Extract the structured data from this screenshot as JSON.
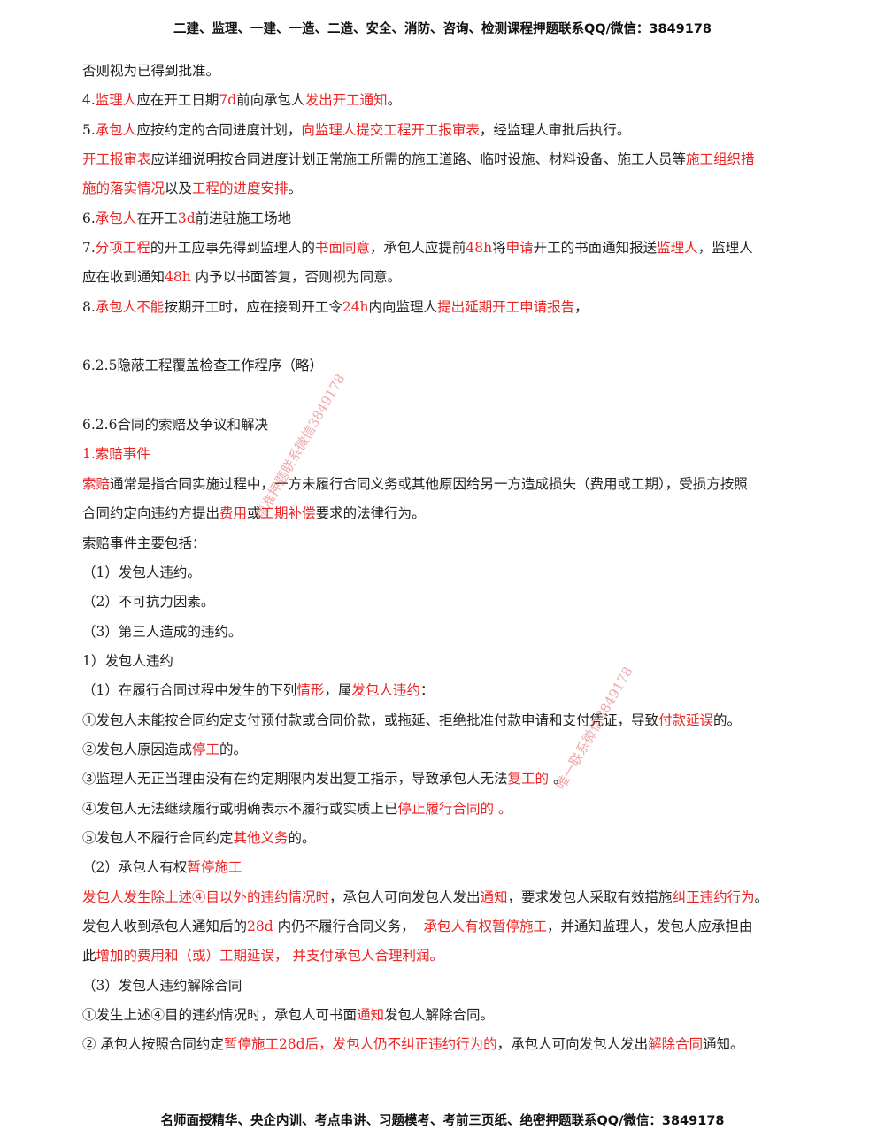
{
  "header": "二建、监理、一建、一造、二造、安全、消防、咨询、检测课程押题联系QQ/微信：3849178",
  "footer": "名师面授精华、央企内训、考点串讲、习题模考、考前三页纸、绝密押题联系QQ/微信：3849178",
  "watermarks": [
    "精准押题联系微信3849178",
    "唯一联系微信3849178"
  ],
  "colors": {
    "highlight": "#ee2222",
    "text": "#222222"
  },
  "lines": [
    [
      {
        "t": "否则视为已得到批准。"
      }
    ],
    [
      {
        "t": "4."
      },
      {
        "t": "监理人",
        "r": 1
      },
      {
        "t": "应在开工日期"
      },
      {
        "t": "7d",
        "r": 1
      },
      {
        "t": "前向承包人"
      },
      {
        "t": "发出开工通知",
        "r": 1
      },
      {
        "t": "。"
      }
    ],
    [
      {
        "t": "5."
      },
      {
        "t": "承包人",
        "r": 1
      },
      {
        "t": "应按约定的合同进度计划，"
      },
      {
        "t": "向监理人提交工程开工报审表",
        "r": 1
      },
      {
        "t": "，经监理人审批后执行。"
      }
    ],
    [
      {
        "t": "开工报审表",
        "r": 1
      },
      {
        "t": "应详细说明按合同进度计划正常施工所需的施工道路、临时设施、材料设备、施工人员等"
      },
      {
        "t": "施工组织措",
        "r": 1
      }
    ],
    [
      {
        "t": "施的落实情况",
        "r": 1
      },
      {
        "t": "以及"
      },
      {
        "t": "工程的进度安排",
        "r": 1
      },
      {
        "t": "。"
      }
    ],
    [
      {
        "t": "6."
      },
      {
        "t": "承包人",
        "r": 1
      },
      {
        "t": "在开工"
      },
      {
        "t": "3d",
        "r": 1
      },
      {
        "t": "前进驻施工场地"
      }
    ],
    [
      {
        "t": "7."
      },
      {
        "t": "分项工程",
        "r": 1
      },
      {
        "t": "的开工应事先得到监理人的"
      },
      {
        "t": "书面同意",
        "r": 1
      },
      {
        "t": "，承包人应提前"
      },
      {
        "t": "48h",
        "r": 1
      },
      {
        "t": "将"
      },
      {
        "t": "申请",
        "r": 1
      },
      {
        "t": "开工的书面通知报送"
      },
      {
        "t": "监理人",
        "r": 1
      },
      {
        "t": "，监理人"
      }
    ],
    [
      {
        "t": "应在收到通知"
      },
      {
        "t": "48h",
        "r": 1
      },
      {
        "t": " 内予以书面答复，否则视为同意。"
      }
    ],
    [
      {
        "t": "8."
      },
      {
        "t": "承包人不能",
        "r": 1
      },
      {
        "t": "按期开工时，应在接到开工令"
      },
      {
        "t": "24h",
        "r": 1
      },
      {
        "t": "内向监理人"
      },
      {
        "t": "提出延期开工申请报告",
        "r": 1
      },
      {
        "t": "，"
      }
    ],
    [],
    [
      {
        "t": "6.2.5隐蔽工程覆盖检查工作程序（略）"
      }
    ],
    [],
    [
      {
        "t": "6.2.6合同的索赔及争议和解决"
      }
    ],
    [
      {
        "t": "1.索赔事件",
        "r": 1
      }
    ],
    [
      {
        "t": "索赔",
        "r": 1
      },
      {
        "t": "通常是指合同实施过程中，一方未履行合同义务或其他原因给另一方造成损失（费用或工期），受损方按照"
      }
    ],
    [
      {
        "t": "合同约定向违约方提出"
      },
      {
        "t": "费用",
        "r": 1
      },
      {
        "t": "或"
      },
      {
        "t": "工期补偿",
        "r": 1
      },
      {
        "t": "要求的法律行为。"
      }
    ],
    [
      {
        "t": "索赔事件主要包括："
      }
    ],
    [
      {
        "t": "（1）发包人违约。"
      }
    ],
    [
      {
        "t": "（2）不可抗力因素。"
      }
    ],
    [
      {
        "t": "（3）第三人造成的违约。"
      }
    ],
    [
      {
        "t": "1）发包人违约"
      }
    ],
    [
      {
        "t": "（1）在履行合同过程中发生的下列"
      },
      {
        "t": "情形",
        "r": 1
      },
      {
        "t": "，属"
      },
      {
        "t": "发包人违约",
        "r": 1
      },
      {
        "t": "："
      }
    ],
    [
      {
        "t": "①发包人未能按合同约定支付预付款或合同价款，或拖延、拒绝批准付款申请和支付凭证，导致"
      },
      {
        "t": "付款延误",
        "r": 1
      },
      {
        "t": "的。"
      }
    ],
    [
      {
        "t": "②发包人原因造成"
      },
      {
        "t": "停工",
        "r": 1
      },
      {
        "t": "的。"
      }
    ],
    [
      {
        "t": "③监理人无正当理由没有在约定期限内发出复工指示，导致承包人无法"
      },
      {
        "t": "复工的",
        "r": 1
      },
      {
        "t": " 。"
      }
    ],
    [
      {
        "t": "④发包人无法继续履行或明确表示不履行或实质上已"
      },
      {
        "t": "停止履行合同的 。",
        "r": 1
      }
    ],
    [
      {
        "t": "⑤发包人不履行合同约定"
      },
      {
        "t": "其他义务",
        "r": 1
      },
      {
        "t": "的。"
      }
    ],
    [
      {
        "t": "（2）承包人有权"
      },
      {
        "t": "暂停施工",
        "r": 1
      }
    ],
    [
      {
        "t": "发包人发生除上述④目以外的违约情况时",
        "r": 1
      },
      {
        "t": "，承包人可向发包人发出"
      },
      {
        "t": "通知",
        "r": 1
      },
      {
        "t": "，要求发包人采取有效措施"
      },
      {
        "t": "纠正违约行为",
        "r": 1
      },
      {
        "t": "。"
      }
    ],
    [
      {
        "t": "发包人收到承包人通知后的"
      },
      {
        "t": "28d",
        "r": 1
      },
      {
        "t": " 内仍不履行合同义务，  "
      },
      {
        "t": "承包人有权暂停施工",
        "r": 1
      },
      {
        "t": "，并通知监理人，发包人应承担由"
      }
    ],
    [
      {
        "t": "此"
      },
      {
        "t": "增加的费用和（或）工期延误， 并支付承包人合理利润。",
        "r": 1
      }
    ],
    [
      {
        "t": "（3）发包人违约解除合同"
      }
    ],
    [
      {
        "t": "①发生上述④目的违约情况时，承包人可书面"
      },
      {
        "t": "通知",
        "r": 1
      },
      {
        "t": "发包人解除合同。"
      }
    ],
    [
      {
        "t": "② 承包人按照合同约定"
      },
      {
        "t": "暂停施工28d后，发包人仍不纠正违约行为的",
        "r": 1
      },
      {
        "t": "，承包人可向发包人发出"
      },
      {
        "t": "解除合同",
        "r": 1
      },
      {
        "t": "通知。"
      }
    ]
  ]
}
